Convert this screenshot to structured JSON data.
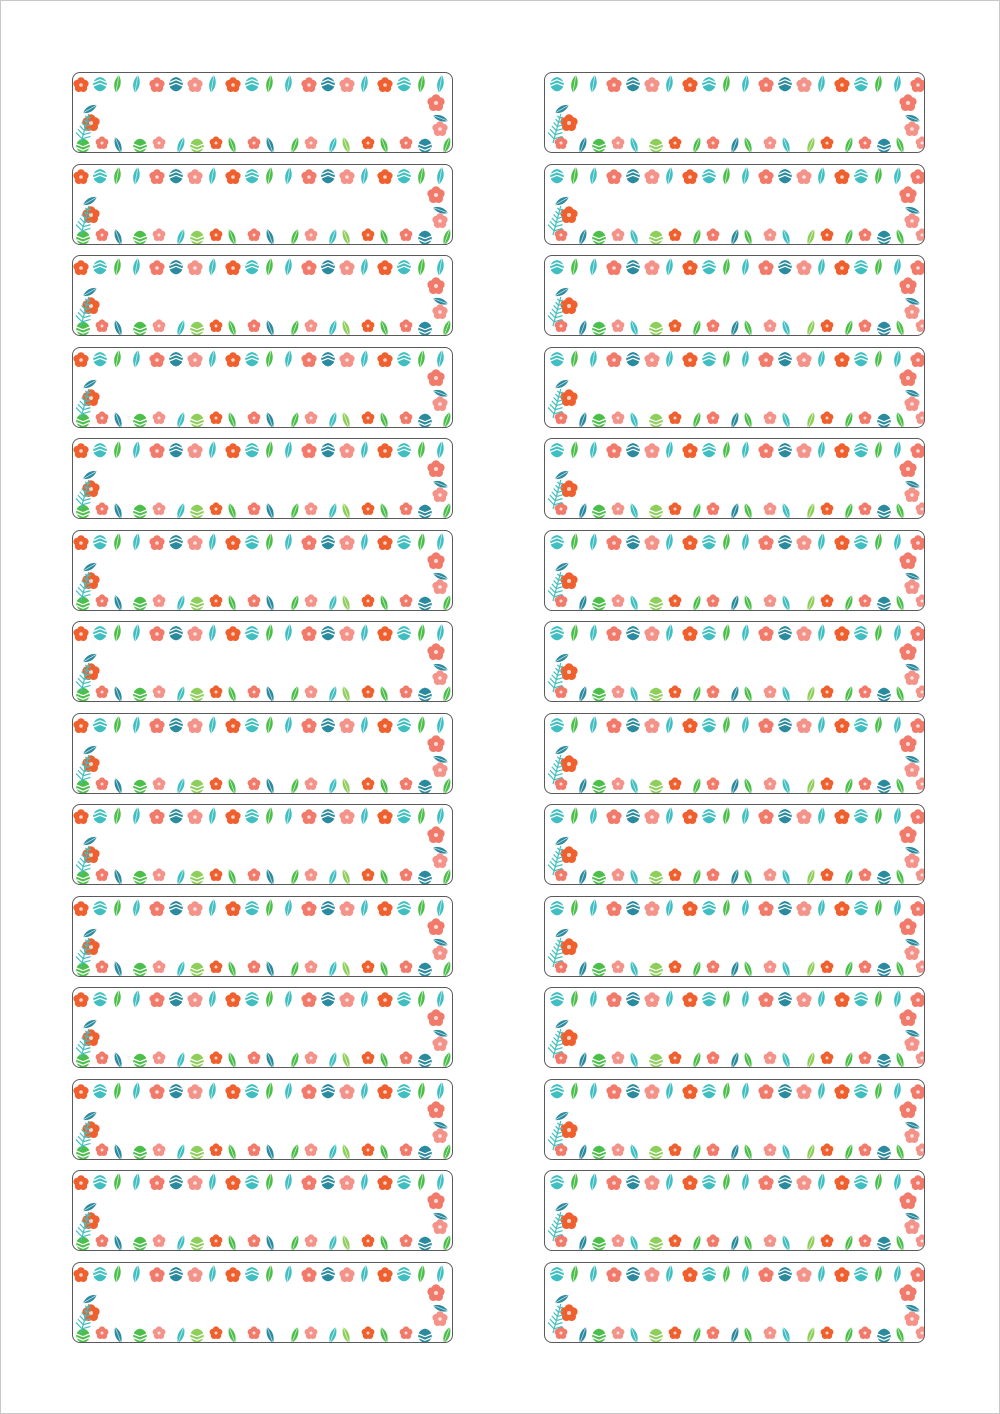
{
  "sheet": {
    "label_count": 28,
    "columns": 2,
    "rows": 14,
    "label_text": "",
    "design": "tropical-leaf-and-hibiscus-frame"
  },
  "colors": {
    "hibiscus_orange": "#f0602e",
    "hibiscus_coral": "#f27a6a",
    "hibiscus_pink": "#f4938a",
    "leaf_teal": "#3fbfc1",
    "leaf_dark_teal": "#2a8a9e",
    "leaf_green": "#4cbf4a",
    "leaf_light_green": "#8dcf5a",
    "outline": "#5a5a5a"
  }
}
